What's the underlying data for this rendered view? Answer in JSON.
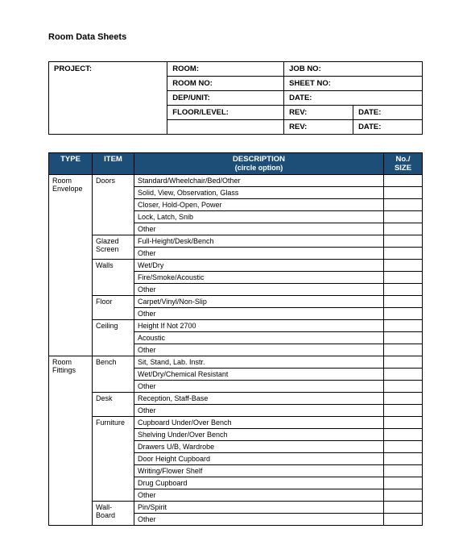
{
  "title": "Room Data Sheets",
  "colors": {
    "header_bg": "#1d4e78",
    "header_fg": "#ffffff",
    "border": "#000000",
    "page_bg": "#ffffff",
    "text": "#000000"
  },
  "info": {
    "project": "PROJECT:",
    "room": "ROOM:",
    "job_no": "JOB NO:",
    "room_no": "ROOM NO:",
    "sheet_no": "SHEET NO:",
    "dep_unit": "DEP/UNIT:",
    "date1": "DATE:",
    "floor_level": "FLOOR/LEVEL:",
    "rev1": "REV:",
    "date2": "DATE:",
    "rev2": "REV:",
    "date3": "DATE:"
  },
  "headers": {
    "type": "TYPE",
    "item": "ITEM",
    "desc": "DESCRIPTION",
    "desc_sub": "(circle option)",
    "size": "No./ SIZE"
  },
  "rows": [
    {
      "type": "Room Envelope",
      "item": "Doors",
      "desc": "Standard/Wheelchair/Bed/Other"
    },
    {
      "type": "",
      "item": "",
      "desc": "Solid, View, Observation, Glass"
    },
    {
      "type": "",
      "item": "",
      "desc": "Closer, Hold-Open, Power"
    },
    {
      "type": "",
      "item": "",
      "desc": "Lock, Latch, Snib"
    },
    {
      "type": "",
      "item": "",
      "desc": "Other"
    },
    {
      "type": "",
      "item": "Glazed Screen",
      "desc": "Full-Height/Desk/Bench"
    },
    {
      "type": "",
      "item": "",
      "desc": "Other"
    },
    {
      "type": "",
      "item": "Walls",
      "desc": "Wet/Dry"
    },
    {
      "type": "",
      "item": "",
      "desc": "Fire/Smoke/Acoustic"
    },
    {
      "type": "",
      "item": "",
      "desc": "Other"
    },
    {
      "type": "",
      "item": "Floor",
      "desc": "Carpet/Vinyl/Non-Slip"
    },
    {
      "type": "",
      "item": "",
      "desc": "Other"
    },
    {
      "type": "",
      "item": "Ceiling",
      "desc": "Height If Not 2700"
    },
    {
      "type": "",
      "item": "",
      "desc": "Acoustic"
    },
    {
      "type": "",
      "item": "",
      "desc": "Other"
    },
    {
      "type": "Room Fittings",
      "item": "Bench",
      "desc": "Sit, Stand, Lab. Instr."
    },
    {
      "type": "",
      "item": "",
      "desc": "Wet/Dry/Chemical Resistant"
    },
    {
      "type": "",
      "item": "",
      "desc": "Other"
    },
    {
      "type": "",
      "item": "Desk",
      "desc": "Reception, Staff-Base"
    },
    {
      "type": "",
      "item": "",
      "desc": "Other"
    },
    {
      "type": "",
      "item": "Furniture",
      "desc": "Cupboard Under/Over Bench"
    },
    {
      "type": "",
      "item": "",
      "desc": "Shelving Under/Over Bench"
    },
    {
      "type": "",
      "item": "",
      "desc": "Drawers U/B, Wardrobe"
    },
    {
      "type": "",
      "item": "",
      "desc": "Door Height Cupboard"
    },
    {
      "type": "",
      "item": "",
      "desc": "Writing/Flower Shelf"
    },
    {
      "type": "",
      "item": "",
      "desc": "Drug Cupboard"
    },
    {
      "type": "",
      "item": "",
      "desc": "Other"
    },
    {
      "type": "",
      "item": "Wall-Board",
      "desc": "Pin/Spirit"
    },
    {
      "type": "",
      "item": "",
      "desc": "Other"
    }
  ],
  "spans": {
    "type": [
      {
        "start": 0,
        "span": 15
      },
      {
        "start": 15,
        "span": 14
      }
    ],
    "item": [
      {
        "start": 0,
        "span": 5
      },
      {
        "start": 5,
        "span": 2
      },
      {
        "start": 7,
        "span": 3
      },
      {
        "start": 10,
        "span": 2
      },
      {
        "start": 12,
        "span": 3
      },
      {
        "start": 15,
        "span": 3
      },
      {
        "start": 18,
        "span": 2
      },
      {
        "start": 20,
        "span": 7
      },
      {
        "start": 27,
        "span": 2
      }
    ]
  }
}
